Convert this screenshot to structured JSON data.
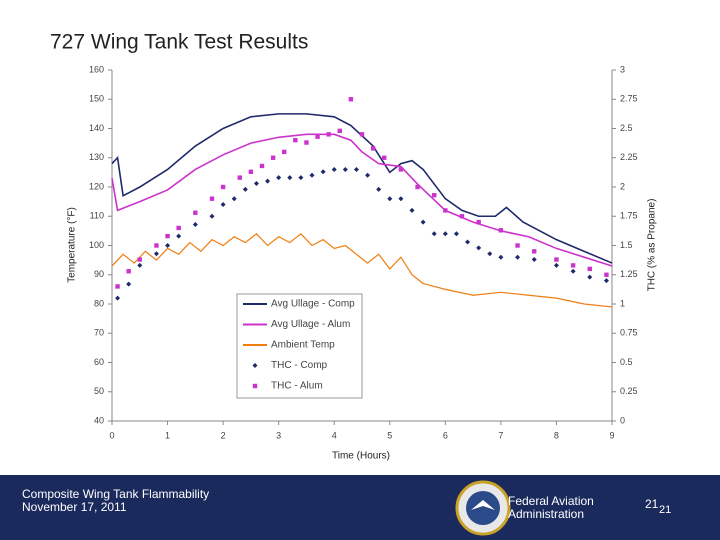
{
  "chart_data": {
    "type": "line",
    "title": "727 Wing Tank Test Results",
    "xlabel": "Time (Hours)",
    "ylabel": "Temperature (°F)",
    "y2label": "THC (% as Propane)",
    "xlim": [
      0,
      9
    ],
    "xticks": [
      0,
      1,
      2,
      3,
      4,
      5,
      6,
      7,
      8,
      9
    ],
    "ylim": [
      40,
      160
    ],
    "yticks": [
      40,
      50,
      60,
      70,
      80,
      90,
      100,
      110,
      120,
      130,
      140,
      150,
      160
    ],
    "y2lim": [
      0,
      3
    ],
    "y2ticks": [
      0,
      0.25,
      0.5,
      0.75,
      1,
      1.25,
      1.5,
      1.75,
      2,
      2.25,
      2.5,
      2.75,
      3
    ],
    "grid": false,
    "legend": "center",
    "series": [
      {
        "name": "Avg Ullage - Comp",
        "color": "#1f2a6b",
        "kind": "line",
        "x": [
          0,
          0.1,
          0.2,
          0.5,
          1,
          1.5,
          2,
          2.5,
          3,
          3.5,
          4,
          4.3,
          4.7,
          5,
          5.2,
          5.4,
          5.6,
          6,
          6.3,
          6.6,
          6.9,
          7.1,
          7.4,
          8,
          8.5,
          9
        ],
        "values": [
          128,
          130,
          117,
          120,
          126,
          134,
          140,
          144,
          145,
          145,
          144,
          141,
          134,
          125,
          128,
          129,
          126,
          116,
          112,
          110,
          110,
          113,
          108,
          102,
          98,
          94
        ]
      },
      {
        "name": "Avg Ullage - Alum",
        "color": "#cc33cc",
        "kind": "line",
        "x": [
          0,
          0.1,
          0.5,
          1,
          1.5,
          2,
          2.5,
          3,
          3.5,
          4,
          4.3,
          4.5,
          4.8,
          5.2,
          5.5,
          6,
          6.5,
          7,
          7.5,
          8,
          8.5,
          9
        ],
        "values": [
          123,
          112,
          115,
          119,
          126,
          131,
          135,
          137,
          138,
          138,
          136,
          132,
          128,
          127,
          121,
          112,
          108,
          105,
          103,
          99,
          96,
          93
        ]
      },
      {
        "name": "Ambient Temp",
        "color": "#f07d10",
        "kind": "line",
        "x": [
          0,
          0.2,
          0.4,
          0.6,
          0.8,
          1,
          1.2,
          1.4,
          1.6,
          1.8,
          2,
          2.2,
          2.4,
          2.6,
          2.8,
          3,
          3.2,
          3.4,
          3.6,
          3.8,
          4,
          4.2,
          4.4,
          4.6,
          4.8,
          5,
          5.2,
          5.4,
          5.6,
          5.8,
          6,
          6.5,
          7,
          7.5,
          8,
          8.5,
          9
        ],
        "values": [
          93,
          97,
          94,
          98,
          95,
          99,
          97,
          101,
          98,
          102,
          100,
          103,
          101,
          104,
          100,
          103,
          101,
          104,
          100,
          102,
          99,
          100,
          97,
          94,
          97,
          92,
          96,
          90,
          87,
          86,
          85,
          83,
          84,
          83,
          82,
          80,
          79
        ]
      },
      {
        "name": "THC - Comp",
        "color": "#1f2a6b",
        "kind": "diamond",
        "axis": "y2",
        "x": [
          0.1,
          0.3,
          0.5,
          0.8,
          1,
          1.2,
          1.5,
          1.8,
          2,
          2.2,
          2.4,
          2.6,
          2.8,
          3,
          3.2,
          3.4,
          3.6,
          3.8,
          4,
          4.2,
          4.4,
          4.6,
          4.8,
          5,
          5.2,
          5.4,
          5.6,
          5.8,
          6,
          6.2,
          6.4,
          6.6,
          6.8,
          7,
          7.3,
          7.6,
          8,
          8.3,
          8.6,
          8.9
        ],
        "values": [
          1.05,
          1.17,
          1.33,
          1.43,
          1.5,
          1.58,
          1.68,
          1.75,
          1.85,
          1.9,
          1.98,
          2.03,
          2.05,
          2.08,
          2.08,
          2.08,
          2.1,
          2.13,
          2.15,
          2.15,
          2.15,
          2.1,
          1.98,
          1.9,
          1.9,
          1.8,
          1.7,
          1.6,
          1.6,
          1.6,
          1.53,
          1.48,
          1.43,
          1.4,
          1.4,
          1.38,
          1.33,
          1.28,
          1.23,
          1.2
        ]
      },
      {
        "name": "THC - Alum",
        "color": "#cc33cc",
        "kind": "square",
        "axis": "y2",
        "x": [
          0.1,
          0.3,
          0.5,
          0.8,
          1,
          1.2,
          1.5,
          1.8,
          2,
          2.3,
          2.5,
          2.7,
          2.9,
          3.1,
          3.3,
          3.5,
          3.7,
          3.9,
          4.1,
          4.3,
          4.5,
          4.7,
          4.9,
          5.2,
          5.5,
          5.8,
          6,
          6.3,
          6.6,
          7,
          7.3,
          7.6,
          8,
          8.3,
          8.6,
          8.9
        ],
        "values": [
          1.15,
          1.28,
          1.38,
          1.5,
          1.58,
          1.65,
          1.78,
          1.9,
          2,
          2.08,
          2.13,
          2.18,
          2.25,
          2.3,
          2.4,
          2.38,
          2.43,
          2.45,
          2.48,
          2.75,
          2.45,
          2.33,
          2.25,
          2.15,
          2,
          1.93,
          1.8,
          1.75,
          1.7,
          1.63,
          1.5,
          1.45,
          1.38,
          1.33,
          1.3,
          1.25
        ]
      }
    ]
  },
  "footer": {
    "left": [
      "Composite Wing Tank Flammability",
      "November 17, 2011"
    ],
    "agency": [
      "Federal Aviation",
      "Administration"
    ],
    "page": "21",
    "page_small": "21"
  }
}
